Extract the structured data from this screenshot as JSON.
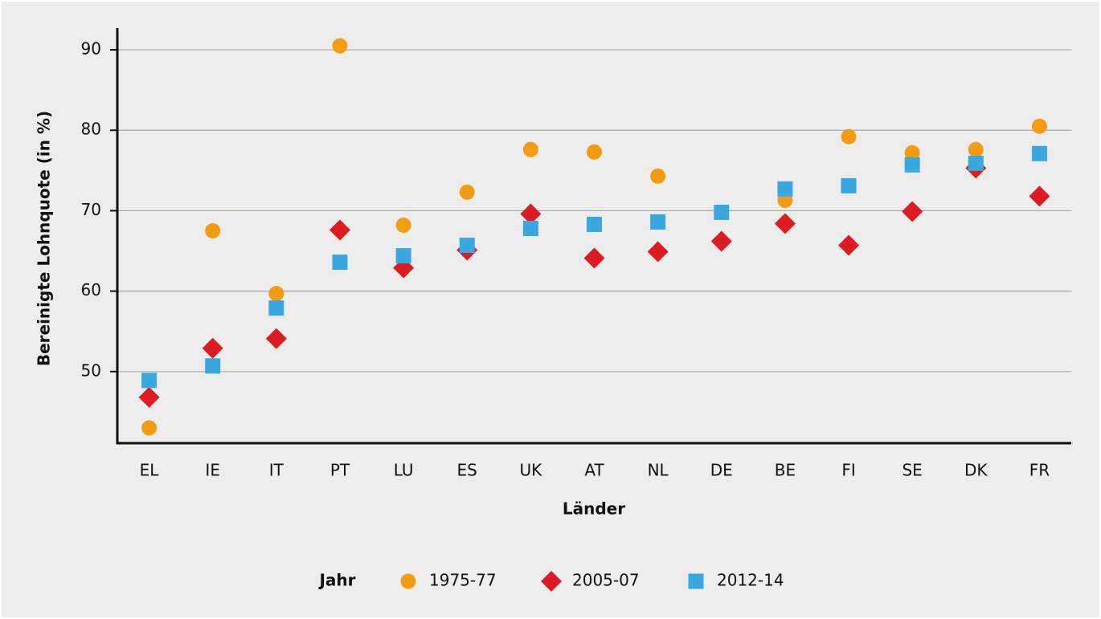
{
  "chart_data": {
    "type": "scatter",
    "y_label": "Bereinigte Lohnquote (in %)",
    "x_label": "Länder",
    "legend_title": "Jahr",
    "legend": "bottom",
    "grid": true,
    "categories": [
      "EL",
      "IE",
      "IT",
      "PT",
      "LU",
      "ES",
      "UK",
      "AT",
      "NL",
      "DE",
      "BE",
      "FI",
      "SE",
      "DK",
      "FR"
    ],
    "ylim": [
      41.1,
      92.7
    ],
    "yticks": [
      50,
      60,
      70,
      80,
      90
    ],
    "series": [
      {
        "name": "1975-77",
        "color": "#f39c12",
        "marker": "circle",
        "values": [
          43.0,
          67.5,
          59.7,
          90.5,
          68.2,
          72.3,
          77.6,
          77.3,
          74.3,
          null,
          71.3,
          79.2,
          77.2,
          77.6,
          80.5
        ]
      },
      {
        "name": "2005-07",
        "color": "#dc1c22",
        "marker": "diamond",
        "values": [
          46.8,
          52.9,
          54.1,
          67.6,
          62.9,
          65.1,
          69.6,
          64.1,
          64.9,
          66.2,
          68.4,
          65.7,
          69.9,
          75.3,
          71.8
        ]
      },
      {
        "name": "2012-14",
        "color": "#3aa8e0",
        "marker": "square",
        "values": [
          48.9,
          50.7,
          57.9,
          63.6,
          64.4,
          65.7,
          67.8,
          68.3,
          68.6,
          69.8,
          72.7,
          73.1,
          75.7,
          75.9,
          77.1
        ]
      }
    ]
  }
}
